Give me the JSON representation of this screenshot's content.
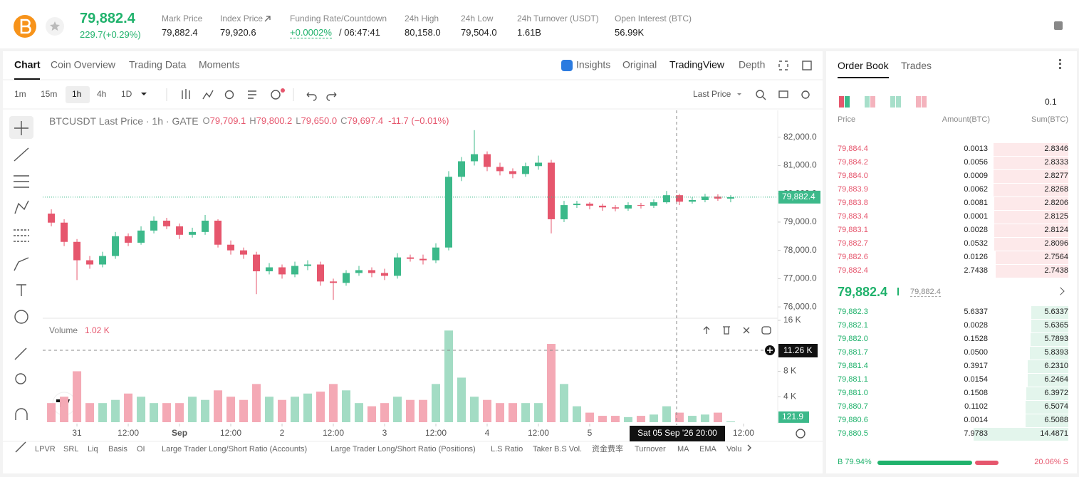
{
  "header": {
    "price": "79,882.4",
    "change": "229.7(+0.29%)",
    "stats": [
      {
        "label": "Mark Price",
        "value": "79,882.4"
      },
      {
        "label": "Index Price",
        "value": "79,920.6"
      },
      {
        "label": "Funding Rate/Countdown",
        "value": "+0.0002%",
        "extra": "/ 06:47:41"
      },
      {
        "label": "24h High",
        "value": "80,158.0"
      },
      {
        "label": "24h Low",
        "value": "79,504.0"
      },
      {
        "label": "24h Turnover (USDT)",
        "value": "1.61B"
      },
      {
        "label": "Open Interest (BTC)",
        "value": "56.99K"
      }
    ]
  },
  "tabs": {
    "left": [
      "Chart",
      "Coin Overview",
      "Trading Data",
      "Moments"
    ],
    "right": [
      "Insights",
      "Original",
      "TradingView",
      "Depth"
    ]
  },
  "toolbar": {
    "intervals": [
      "1m",
      "15m",
      "1h",
      "4h",
      "1D"
    ],
    "price_type": "Last Price"
  },
  "chart_data": {
    "type": "candlestick",
    "legend": {
      "symbol": "BTCUSDT Last Price · 1h · GATE",
      "o_label": "O",
      "o": "79,709.1",
      "h_label": "H",
      "h": "79,800.2",
      "l_label": "L",
      "l": "79,650.0",
      "c_label": "C",
      "c": "79,697.4",
      "change": "-11.7 (−0.01%)"
    },
    "categories": [
      null,
      null,
      null,
      null,
      null,
      null,
      null,
      null,
      null,
      null,
      null,
      null,
      null,
      null,
      null,
      null,
      null,
      null,
      null,
      null,
      null,
      null,
      null,
      null,
      null,
      null,
      null,
      null,
      null,
      null,
      null,
      null,
      null,
      null,
      null,
      null,
      null,
      null,
      null,
      null,
      null,
      null,
      null,
      null,
      null,
      null,
      null,
      null,
      null,
      null,
      null,
      null,
      null,
      null
    ],
    "open": [
      79300,
      78980,
      78300,
      77650,
      77500,
      77800,
      78500,
      78270,
      78700,
      79050,
      78850,
      78550,
      78650,
      79050,
      78200,
      78000,
      77850,
      77260,
      77400,
      77150,
      77450,
      77500,
      76900,
      76850,
      77200,
      77300,
      77200,
      77100,
      77750,
      77700,
      77650,
      78100,
      80600,
      81150,
      81400,
      80950,
      80800,
      80700,
      80980,
      81100,
      79100,
      79600,
      79650,
      79580,
      79520,
      79480,
      79600,
      79580,
      79700,
      79950,
      79720,
      79780,
      79900,
      79830
    ],
    "high": [
      79450,
      79100,
      78400,
      77800,
      77950,
      78650,
      78600,
      78850,
      79200,
      79150,
      78950,
      78800,
      79250,
      79100,
      78350,
      78100,
      77950,
      77550,
      77500,
      77600,
      77650,
      77600,
      77000,
      77300,
      77450,
      77400,
      77350,
      77900,
      77850,
      77850,
      78250,
      80800,
      81300,
      82250,
      81500,
      81100,
      80900,
      81100,
      81350,
      81200,
      79750,
      79750,
      79700,
      79650,
      79600,
      79700,
      79680,
      79800,
      80100,
      80000,
      79880,
      80000,
      79980,
      79950
    ],
    "low": [
      78850,
      78150,
      76950,
      77350,
      77400,
      77700,
      78150,
      78200,
      78600,
      78750,
      78400,
      78450,
      78550,
      78100,
      77850,
      77700,
      76450,
      77150,
      77000,
      77050,
      77300,
      76750,
      76250,
      76750,
      77100,
      77050,
      76950,
      77000,
      77600,
      77500,
      77550,
      78000,
      80450,
      81000,
      80800,
      80650,
      80550,
      80600,
      80850,
      78600,
      79000,
      79500,
      79450,
      79400,
      79380,
      79400,
      79480,
      79500,
      79650,
      79600,
      79650,
      79700,
      79750,
      79700
    ],
    "close": [
      78980,
      78300,
      77650,
      77500,
      77800,
      78500,
      78270,
      78700,
      79050,
      78850,
      78550,
      78650,
      79050,
      78200,
      78000,
      77850,
      77260,
      77400,
      77150,
      77450,
      77500,
      76900,
      76850,
      77200,
      77300,
      77200,
      77100,
      77750,
      77700,
      77650,
      78100,
      80600,
      81150,
      81400,
      80950,
      80800,
      80700,
      80980,
      81100,
      79100,
      79600,
      79650,
      79580,
      79520,
      79480,
      79600,
      79580,
      79700,
      79950,
      79720,
      79780,
      79900,
      79830,
      79882.4
    ],
    "up_color": "#3cb98a",
    "down_color": "#e6566d",
    "xlim": [
      -0.67,
      56.67
    ],
    "xticks": [
      {
        "value": 2,
        "label": "31"
      },
      {
        "value": 6,
        "label": "12:00"
      },
      {
        "value": 10,
        "label": "Sep"
      },
      {
        "value": 14,
        "label": "12:00"
      },
      {
        "value": 18,
        "label": "2"
      },
      {
        "value": 22,
        "label": "12:00"
      },
      {
        "value": 26,
        "label": "3"
      },
      {
        "value": 30,
        "label": "12:00"
      },
      {
        "value": 34,
        "label": "4"
      },
      {
        "value": 38,
        "label": "12:00"
      },
      {
        "value": 42,
        "label": "5"
      },
      {
        "value": 54,
        "label": "12:00"
      }
    ],
    "ylim": [
      75600,
      82950
    ],
    "yticks": [
      {
        "value": 76000,
        "label": "76,000.0"
      },
      {
        "value": 77000,
        "label": "77,000.0"
      },
      {
        "value": 78000,
        "label": "78,000.0"
      },
      {
        "value": 79000,
        "label": "79,000.0"
      },
      {
        "value": 80000,
        "label": "80,000.0"
      },
      {
        "value": 81000,
        "label": "81,000.0"
      },
      {
        "value": 82000,
        "label": "82,000.0"
      }
    ],
    "last_price": {
      "value": 79882.4,
      "label": "79,882.4"
    },
    "crosshair": {
      "x_label": "Sat 05 Sep '26   20:00",
      "y_label": "11.26 K"
    },
    "volume": {
      "title": "Volume",
      "current": "1.02 K",
      "values": [
        3,
        4,
        8,
        3,
        3,
        3.5,
        4.5,
        4,
        3,
        3,
        3,
        4,
        3.5,
        5,
        4,
        3.5,
        6,
        4,
        3.5,
        4,
        4.5,
        4.8,
        6,
        5,
        3,
        2.5,
        3,
        4,
        3.5,
        3.5,
        6,
        14.4,
        7,
        4,
        3.5,
        3,
        3,
        3,
        3,
        12.3,
        6,
        2.5,
        1.5,
        1,
        1,
        0.8,
        1,
        1.2,
        2.5,
        1.5,
        1,
        1.2,
        1.5,
        0.1219
      ],
      "last_value_label": "121.9",
      "ylim": [
        0,
        16.33
      ],
      "yticks": [
        {
          "value": 4,
          "label": "4 K"
        },
        {
          "value": 8,
          "label": "8 K"
        },
        {
          "value": 16,
          "label": "16 K"
        }
      ],
      "up_color": "#a3dcc4",
      "down_color": "#f4a9b5"
    }
  },
  "bottom_toolbar": [
    "LPVR",
    "SRL",
    "Liq",
    "Basis",
    "OI",
    "Large Trader Long/Short Ratio (Accounts)",
    "Large Trader Long/Short Ratio (Positions)",
    "L.S Ratio",
    "Taker B.S Vol.",
    "资金费率",
    "Turnover",
    "MA",
    "EMA",
    "Volu"
  ],
  "order_book": {
    "tabs": [
      "Order Book",
      "Trades"
    ],
    "precision": "0.1",
    "columns": [
      "Price",
      "Amount(BTC)",
      "Sum(BTC)"
    ],
    "asks": [
      {
        "price": "79,884.4",
        "amount": "0.0013",
        "sum": {
          "value": 2.8346,
          "label": "2.8346"
        }
      },
      {
        "price": "79,884.2",
        "amount": "0.0056",
        "sum": {
          "value": 2.8333,
          "label": "2.8333"
        }
      },
      {
        "price": "79,884.0",
        "amount": "0.0009",
        "sum": {
          "value": 2.8277,
          "label": "2.8277"
        }
      },
      {
        "price": "79,883.9",
        "amount": "0.0062",
        "sum": {
          "value": 2.8268,
          "label": "2.8268"
        }
      },
      {
        "price": "79,883.8",
        "amount": "0.0081",
        "sum": {
          "value": 2.8206,
          "label": "2.8206"
        }
      },
      {
        "price": "79,883.4",
        "amount": "0.0001",
        "sum": {
          "value": 2.8125,
          "label": "2.8125"
        }
      },
      {
        "price": "79,883.1",
        "amount": "0.0028",
        "sum": {
          "value": 2.8124,
          "label": "2.8124"
        }
      },
      {
        "price": "79,882.7",
        "amount": "0.0532",
        "sum": {
          "value": 2.8096,
          "label": "2.8096"
        }
      },
      {
        "price": "79,882.6",
        "amount": "0.0126",
        "sum": {
          "value": 2.7564,
          "label": "2.7564"
        }
      },
      {
        "price": "79,882.4",
        "amount": "2.7438",
        "sum": {
          "value": 2.7438,
          "label": "2.7438"
        }
      }
    ],
    "mid_price": "79,882.4",
    "mark_price": "79,882.4",
    "bids": [
      {
        "price": "79,882.3",
        "amount": "5.6337",
        "sum": {
          "value": 5.6337,
          "label": "5.6337"
        }
      },
      {
        "price": "79,882.1",
        "amount": "0.0028",
        "sum": {
          "value": 5.6365,
          "label": "5.6365"
        }
      },
      {
        "price": "79,882.0",
        "amount": "0.1528",
        "sum": {
          "value": 5.7893,
          "label": "5.7893"
        }
      },
      {
        "price": "79,881.7",
        "amount": "0.0500",
        "sum": {
          "value": 5.8393,
          "label": "5.8393"
        }
      },
      {
        "price": "79,881.4",
        "amount": "0.3917",
        "sum": {
          "value": 6.231,
          "label": "6.2310"
        }
      },
      {
        "price": "79,881.1",
        "amount": "0.0154",
        "sum": {
          "value": 6.2464,
          "label": "6.2464"
        }
      },
      {
        "price": "79,881.0",
        "amount": "0.1508",
        "sum": {
          "value": 6.3972,
          "label": "6.3972"
        }
      },
      {
        "price": "79,880.7",
        "amount": "0.1102",
        "sum": {
          "value": 6.5074,
          "label": "6.5074"
        }
      },
      {
        "price": "79,880.6",
        "amount": "0.0014",
        "sum": {
          "value": 6.5088,
          "label": "6.5088"
        }
      },
      {
        "price": "79,880.5",
        "amount": "7.9783",
        "sum": {
          "value": 14.4871,
          "label": "14.4871"
        }
      }
    ],
    "ratio": {
      "buy_label": "B 79.94%",
      "buy": 79.94,
      "sell_label": "20.06% S",
      "sell": 20.06
    }
  }
}
